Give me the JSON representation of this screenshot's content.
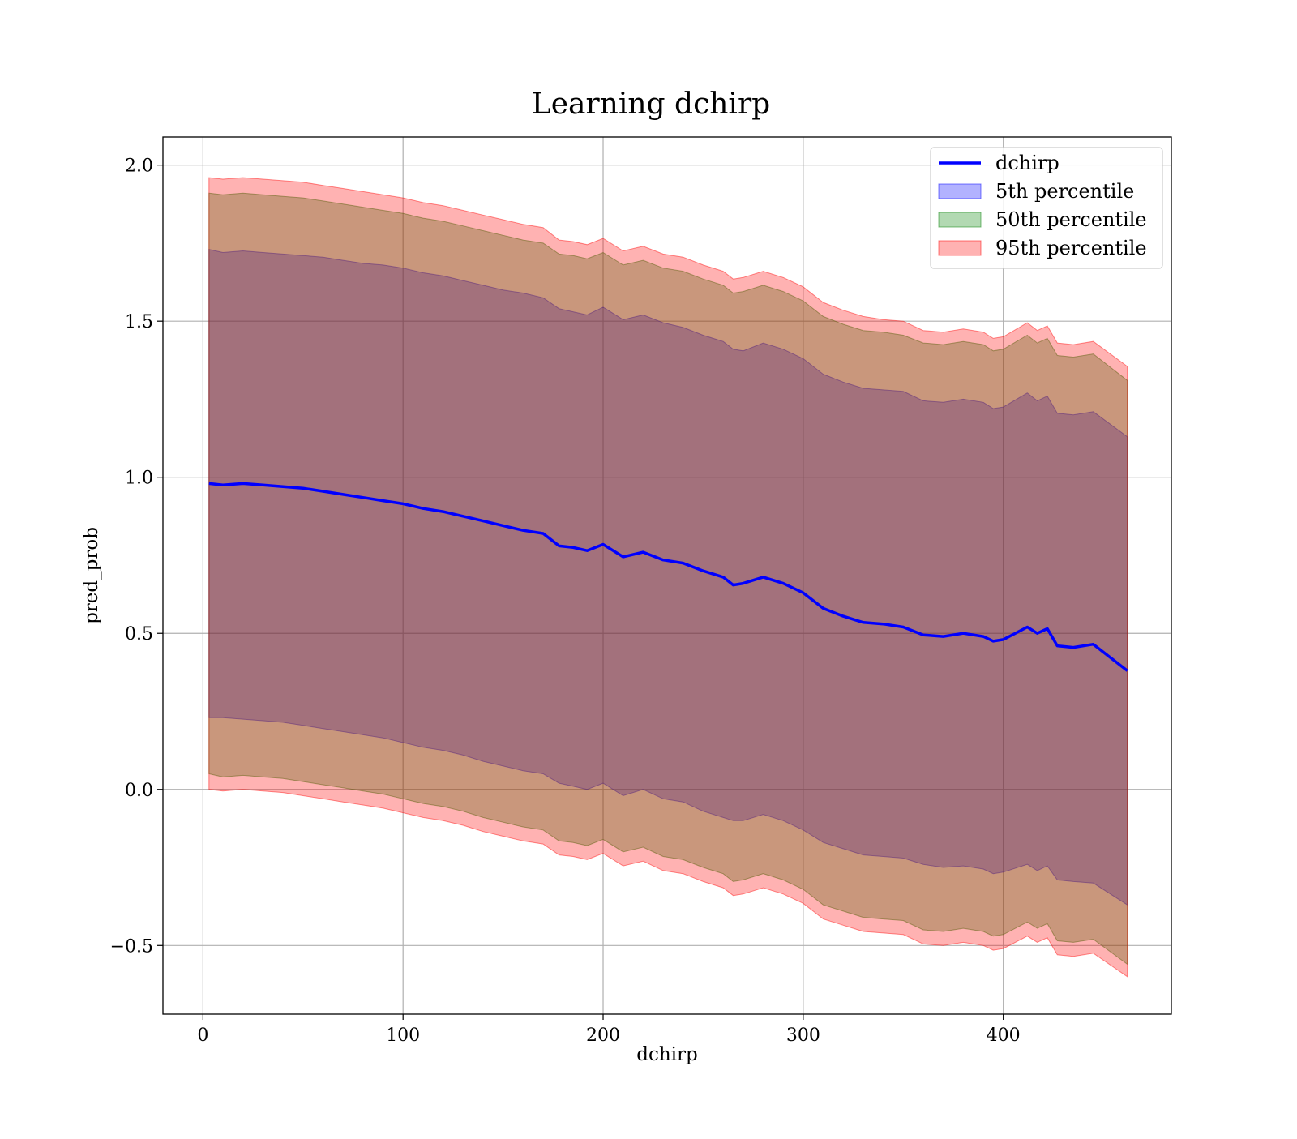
{
  "chart_data": {
    "type": "area",
    "title": "Learning dchirp",
    "xlabel": "dchirp",
    "ylabel": "pred_prob",
    "xlim": [
      -20,
      484
    ],
    "ylim": [
      -0.72,
      2.09
    ],
    "xticks": [
      0,
      100,
      200,
      300,
      400
    ],
    "xtick_labels": [
      "0",
      "100",
      "200",
      "300",
      "400"
    ],
    "yticks": [
      -0.5,
      0.0,
      0.5,
      1.0,
      1.5,
      2.0
    ],
    "ytick_labels": [
      "−0.5",
      "0.0",
      "0.5",
      "1.0",
      "1.5",
      "2.0"
    ],
    "grid": true,
    "legend_position": "top-right",
    "x": [
      3,
      10,
      20,
      30,
      40,
      50,
      60,
      70,
      80,
      90,
      100,
      110,
      120,
      130,
      140,
      150,
      160,
      170,
      178,
      185,
      192,
      200,
      210,
      220,
      230,
      240,
      250,
      260,
      265,
      270,
      280,
      290,
      300,
      310,
      320,
      330,
      340,
      350,
      360,
      370,
      380,
      390,
      395,
      400,
      412,
      417,
      422,
      427,
      435,
      445,
      462
    ],
    "series": [
      {
        "name": "dchirp",
        "kind": "line",
        "color": "#0000ff",
        "values": [
          0.98,
          0.975,
          0.98,
          0.975,
          0.97,
          0.965,
          0.955,
          0.945,
          0.935,
          0.925,
          0.915,
          0.9,
          0.89,
          0.875,
          0.86,
          0.845,
          0.83,
          0.82,
          0.78,
          0.775,
          0.765,
          0.785,
          0.745,
          0.76,
          0.735,
          0.725,
          0.7,
          0.68,
          0.655,
          0.66,
          0.68,
          0.66,
          0.63,
          0.58,
          0.555,
          0.535,
          0.53,
          0.52,
          0.495,
          0.49,
          0.5,
          0.49,
          0.475,
          0.48,
          0.52,
          0.5,
          0.515,
          0.46,
          0.455,
          0.465,
          0.38
        ]
      },
      {
        "name": "5th percentile",
        "kind": "band",
        "color": "#0000ff",
        "opacity": 0.3,
        "lower": [
          0.23,
          0.23,
          0.225,
          0.22,
          0.215,
          0.205,
          0.195,
          0.185,
          0.175,
          0.165,
          0.15,
          0.135,
          0.125,
          0.11,
          0.09,
          0.075,
          0.06,
          0.05,
          0.02,
          0.01,
          0.0,
          0.02,
          -0.02,
          0.0,
          -0.03,
          -0.04,
          -0.07,
          -0.09,
          -0.1,
          -0.1,
          -0.08,
          -0.1,
          -0.13,
          -0.17,
          -0.19,
          -0.21,
          -0.215,
          -0.22,
          -0.24,
          -0.25,
          -0.245,
          -0.255,
          -0.27,
          -0.265,
          -0.24,
          -0.26,
          -0.245,
          -0.29,
          -0.295,
          -0.3,
          -0.37
        ],
        "upper": [
          1.73,
          1.72,
          1.725,
          1.72,
          1.715,
          1.71,
          1.705,
          1.695,
          1.685,
          1.68,
          1.67,
          1.655,
          1.645,
          1.63,
          1.615,
          1.6,
          1.59,
          1.575,
          1.54,
          1.53,
          1.52,
          1.545,
          1.505,
          1.52,
          1.495,
          1.48,
          1.455,
          1.435,
          1.41,
          1.405,
          1.43,
          1.41,
          1.38,
          1.33,
          1.305,
          1.285,
          1.28,
          1.275,
          1.245,
          1.24,
          1.25,
          1.24,
          1.22,
          1.225,
          1.27,
          1.245,
          1.26,
          1.205,
          1.2,
          1.21,
          1.13
        ]
      },
      {
        "name": "50th percentile",
        "kind": "band",
        "color": "#008000",
        "opacity": 0.3,
        "lower": [
          0.05,
          0.04,
          0.045,
          0.04,
          0.035,
          0.025,
          0.015,
          0.005,
          -0.005,
          -0.015,
          -0.03,
          -0.045,
          -0.055,
          -0.07,
          -0.09,
          -0.105,
          -0.12,
          -0.13,
          -0.165,
          -0.17,
          -0.18,
          -0.16,
          -0.2,
          -0.185,
          -0.215,
          -0.225,
          -0.25,
          -0.27,
          -0.295,
          -0.29,
          -0.27,
          -0.29,
          -0.32,
          -0.37,
          -0.39,
          -0.41,
          -0.415,
          -0.42,
          -0.45,
          -0.455,
          -0.445,
          -0.455,
          -0.47,
          -0.465,
          -0.425,
          -0.445,
          -0.43,
          -0.485,
          -0.49,
          -0.48,
          -0.56
        ],
        "upper": [
          1.91,
          1.905,
          1.91,
          1.905,
          1.9,
          1.895,
          1.885,
          1.875,
          1.865,
          1.855,
          1.845,
          1.83,
          1.82,
          1.805,
          1.79,
          1.775,
          1.76,
          1.75,
          1.715,
          1.71,
          1.7,
          1.72,
          1.68,
          1.695,
          1.67,
          1.66,
          1.635,
          1.615,
          1.59,
          1.595,
          1.615,
          1.595,
          1.565,
          1.515,
          1.49,
          1.47,
          1.465,
          1.455,
          1.43,
          1.425,
          1.435,
          1.425,
          1.405,
          1.41,
          1.455,
          1.43,
          1.445,
          1.39,
          1.385,
          1.395,
          1.31
        ]
      },
      {
        "name": "95th percentile",
        "kind": "band",
        "color": "#ff0000",
        "opacity": 0.3,
        "lower": [
          0.0,
          -0.005,
          0.0,
          -0.005,
          -0.01,
          -0.02,
          -0.03,
          -0.04,
          -0.05,
          -0.06,
          -0.075,
          -0.09,
          -0.1,
          -0.115,
          -0.135,
          -0.15,
          -0.165,
          -0.175,
          -0.21,
          -0.215,
          -0.225,
          -0.205,
          -0.245,
          -0.23,
          -0.26,
          -0.27,
          -0.295,
          -0.315,
          -0.34,
          -0.335,
          -0.315,
          -0.335,
          -0.365,
          -0.415,
          -0.435,
          -0.455,
          -0.46,
          -0.465,
          -0.495,
          -0.5,
          -0.49,
          -0.5,
          -0.515,
          -0.51,
          -0.47,
          -0.49,
          -0.475,
          -0.53,
          -0.535,
          -0.525,
          -0.6
        ],
        "upper": [
          1.96,
          1.955,
          1.96,
          1.955,
          1.95,
          1.945,
          1.935,
          1.925,
          1.915,
          1.905,
          1.895,
          1.88,
          1.87,
          1.855,
          1.84,
          1.825,
          1.81,
          1.8,
          1.76,
          1.755,
          1.745,
          1.765,
          1.725,
          1.74,
          1.715,
          1.705,
          1.68,
          1.66,
          1.635,
          1.64,
          1.66,
          1.64,
          1.61,
          1.56,
          1.535,
          1.515,
          1.505,
          1.5,
          1.47,
          1.465,
          1.475,
          1.465,
          1.445,
          1.45,
          1.495,
          1.47,
          1.485,
          1.43,
          1.425,
          1.435,
          1.355
        ]
      }
    ]
  }
}
